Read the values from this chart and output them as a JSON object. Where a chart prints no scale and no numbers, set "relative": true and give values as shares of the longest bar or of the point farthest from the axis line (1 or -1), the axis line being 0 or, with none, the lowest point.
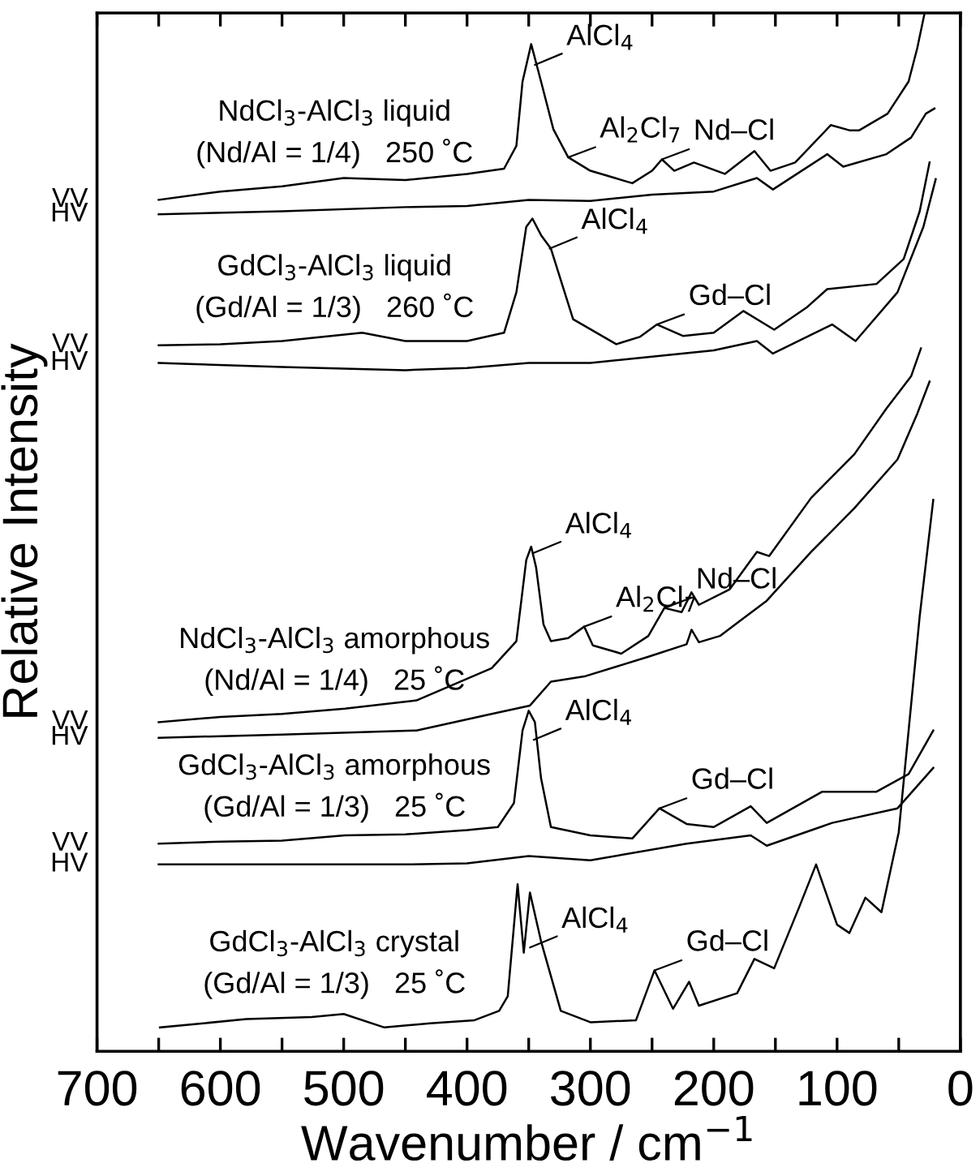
{
  "chart_data": {
    "type": "line",
    "relative": true,
    "xlabel": "Wavenumber / cm$^{−1}$",
    "ylabel": "Relative Intensity",
    "xlim": [
      700,
      0
    ],
    "xticks": [
      0,
      {
        "value": 50,
        "label": null
      },
      100,
      {
        "value": 150,
        "label": null
      },
      200,
      {
        "value": 250,
        "label": null
      },
      300,
      {
        "value": 350,
        "label": null
      },
      400,
      {
        "value": 450,
        "label": null
      },
      500,
      {
        "value": 550,
        "label": null
      },
      600,
      {
        "value": 650,
        "label": null
      },
      700
    ],
    "grid": false,
    "legend": false,
    "marker": "none",
    "line_style": "solid",
    "series": [
      {
        "name": "VV",
        "color": "#000000",
        "x": [
          650,
          600,
          550,
          500,
          450,
          400,
          370,
          360,
          355,
          348,
          340,
          330,
          318,
          300,
          280,
          266,
          250,
          242,
          232,
          216,
          191,
          167,
          154,
          134,
          105,
          90,
          82,
          59,
          42,
          35,
          29
        ],
        "values": [
          0.82,
          0.828,
          0.833,
          0.841,
          0.839,
          0.845,
          0.85,
          0.872,
          0.934,
          0.97,
          0.934,
          0.888,
          0.861,
          0.848,
          0.841,
          0.836,
          0.848,
          0.859,
          0.848,
          0.856,
          0.845,
          0.867,
          0.848,
          0.856,
          0.892,
          0.887,
          0.887,
          0.903,
          0.934,
          0.966,
          1.0
        ]
      },
      {
        "name": "HV",
        "color": "#000000",
        "x": [
          650,
          550,
          450,
          400,
          350,
          300,
          250,
          200,
          165,
          152,
          108,
          95,
          60,
          40,
          28,
          21
        ],
        "values": [
          0.806,
          0.809,
          0.813,
          0.814,
          0.82,
          0.819,
          0.825,
          0.828,
          0.841,
          0.83,
          0.864,
          0.852,
          0.864,
          0.88,
          0.903,
          0.908
        ]
      },
      {
        "name": "VV",
        "color": "#000000",
        "x": [
          650,
          600,
          550,
          485,
          450,
          400,
          370,
          360,
          352,
          347,
          340,
          332,
          314,
          279,
          260,
          246,
          225,
          200,
          176,
          151,
          125,
          108,
          68,
          46,
          33,
          25
        ],
        "values": [
          0.68,
          0.681,
          0.684,
          0.692,
          0.684,
          0.684,
          0.692,
          0.731,
          0.794,
          0.802,
          0.786,
          0.773,
          0.705,
          0.681,
          0.688,
          0.7,
          0.689,
          0.692,
          0.713,
          0.695,
          0.716,
          0.734,
          0.739,
          0.763,
          0.809,
          0.856
        ]
      },
      {
        "name": "HV",
        "color": "#000000",
        "x": [
          650,
          550,
          450,
          400,
          350,
          300,
          250,
          200,
          165,
          152,
          104,
          85,
          51,
          30,
          20
        ],
        "values": [
          0.663,
          0.659,
          0.656,
          0.658,
          0.663,
          0.663,
          0.669,
          0.675,
          0.684,
          0.672,
          0.7,
          0.684,
          0.731,
          0.794,
          0.84
        ]
      },
      {
        "name": "VV",
        "color": "#000000",
        "x": [
          650,
          600,
          550,
          499,
          441,
          380,
          360,
          352,
          348,
          344,
          338,
          332,
          318,
          305,
          298,
          275,
          253,
          240,
          226,
          218,
          212,
          187,
          165,
          155,
          121,
          86,
          60,
          40,
          32
        ],
        "values": [
          0.317,
          0.322,
          0.325,
          0.33,
          0.338,
          0.369,
          0.395,
          0.473,
          0.486,
          0.466,
          0.411,
          0.395,
          0.398,
          0.409,
          0.391,
          0.383,
          0.4,
          0.427,
          0.423,
          0.442,
          0.43,
          0.445,
          0.481,
          0.477,
          0.533,
          0.575,
          0.619,
          0.65,
          0.677
        ]
      },
      {
        "name": "HV",
        "color": "#000000",
        "x": [
          650,
          550,
          441,
          380,
          349,
          332,
          305,
          253,
          222,
          218,
          212,
          195,
          157,
          121,
          86,
          51,
          35,
          25
        ],
        "values": [
          0.302,
          0.305,
          0.309,
          0.325,
          0.333,
          0.356,
          0.361,
          0.38,
          0.392,
          0.406,
          0.394,
          0.4,
          0.434,
          0.481,
          0.523,
          0.57,
          0.614,
          0.645
        ]
      },
      {
        "name": "VV",
        "color": "#000000",
        "x": [
          650,
          600,
          550,
          499,
          450,
          400,
          375,
          362,
          355,
          350,
          345,
          340,
          332,
          300,
          266,
          244,
          222,
          200,
          170,
          157,
          112,
          68,
          42,
          22
        ],
        "values": [
          0.2,
          0.202,
          0.203,
          0.208,
          0.209,
          0.213,
          0.216,
          0.239,
          0.309,
          0.328,
          0.317,
          0.263,
          0.216,
          0.208,
          0.205,
          0.234,
          0.219,
          0.216,
          0.236,
          0.22,
          0.25,
          0.25,
          0.267,
          0.309
        ]
      },
      {
        "name": "HV",
        "color": "#000000",
        "x": [
          650,
          550,
          450,
          400,
          350,
          300,
          222,
          170,
          157,
          104,
          51,
          22
        ],
        "values": [
          0.18,
          0.18,
          0.18,
          0.181,
          0.188,
          0.184,
          0.2,
          0.208,
          0.198,
          0.22,
          0.234,
          0.273
        ]
      },
      {
        "color": "#000000",
        "x": [
          649,
          579,
          526,
          500,
          467,
          430,
          394,
          374,
          367,
          359,
          354,
          349,
          340,
          324,
          300,
          263,
          248,
          233,
          220,
          212,
          181,
          167,
          151,
          131,
          117,
          100,
          90,
          77,
          64,
          50,
          33,
          22
        ],
        "values": [
          0.023,
          0.031,
          0.033,
          0.036,
          0.023,
          0.027,
          0.03,
          0.039,
          0.053,
          0.161,
          0.095,
          0.153,
          0.106,
          0.039,
          0.028,
          0.03,
          0.078,
          0.041,
          0.067,
          0.044,
          0.056,
          0.089,
          0.08,
          0.138,
          0.18,
          0.122,
          0.114,
          0.148,
          0.134,
          0.211,
          0.419,
          0.531
        ]
      }
    ],
    "annotations": [
      "NdCl$_{3}$-AlCl$_{3}$ liquid\n(Nd/Al = 1/4)   250 ˚C",
      "GdCl$_{3}$-AlCl$_{3}$ liquid\n(Gd/Al = 1/3)   260 ˚C",
      "NdCl$_{3}$-AlCl$_{3}$ amorphous\n(Nd/Al = 1/4)   25 ˚C",
      "GdCl$_{3}$-AlCl$_{3}$ amorphous\n(Gd/Al = 1/3)   25 ˚C",
      "GdCl$_{3}$-AlCl$_{3}$ crystal\n(Gd/Al = 1/3)   25 ˚C",
      {
        "text": "AlCl$_{4}$",
        "x": 345,
        "y": 0.95
      },
      {
        "text": "Al$_{2}$Cl$_{7}$",
        "x": 318,
        "y": 0.861
      },
      {
        "text": "Nd–Cl",
        "x": 242,
        "y": 0.859
      },
      {
        "text": "AlCl$_{4}$",
        "x": 333,
        "y": 0.773
      },
      {
        "text": "Gd–Cl",
        "x": 246,
        "y": 0.7
      },
      {
        "text": "AlCl$_{4}$",
        "x": 346,
        "y": 0.48
      },
      {
        "text": "Al$_{2}$Cl$_{7}$",
        "x": 305,
        "y": 0.409
      },
      {
        "text": "Nd–Cl",
        "x": 240,
        "y": 0.427
      },
      {
        "text": "AlCl$_{4}$",
        "x": 346,
        "y": 0.3
      },
      {
        "text": "Gd–Cl",
        "x": 244,
        "y": 0.234
      },
      {
        "text": "AlCl$_{4}$",
        "x": 349,
        "y": 0.1
      },
      {
        "text": "Gd–Cl",
        "x": 248,
        "y": 0.078
      }
    ]
  }
}
